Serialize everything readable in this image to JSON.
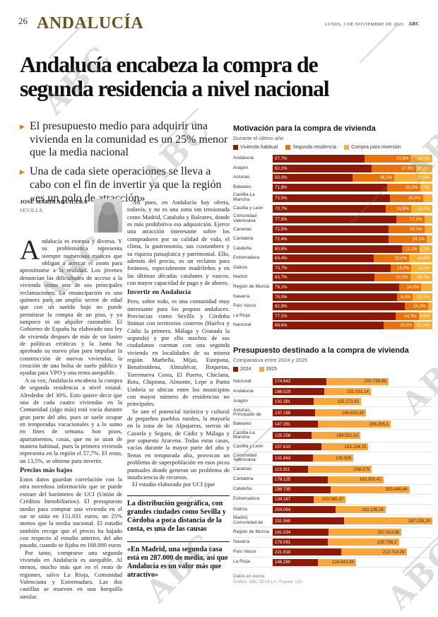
{
  "page": {
    "number": "26",
    "section": "ANDALUCÍA",
    "dateline": "LUNES, 3 DE NOVIEMBRE DE 2025",
    "brand": "ABC",
    "watermark": "ABC",
    "accent_color": "#e87511",
    "section_color": "#6b531f"
  },
  "headline": {
    "full": "Andalucía encabeza la compra de segunda residencia a nivel nacional",
    "line1": "Andalucía encabeza la compra de",
    "line2": "segunda residencia a nivel nacional"
  },
  "bullets": [
    "El presupuesto medio para adquirir una vivienda en la comunidad es un 25% menor que la media nacional",
    "Una de cada siete operaciones se lleva a cabo con el fin de invertir ya que la región «es un polo de atracción»"
  ],
  "byline": {
    "author": "JOSÉ MARÍA AGUILERA",
    "location": "SEVILLA"
  },
  "article": {
    "col1": {
      "p1": "ndalucía es extensa y diversa. Y su problemática representa siempre numerosos matices que obligan a acercar el zoom para aproximarse a la realidad. Los jóvenes denuncian las dificultades de acceso a la vivienda como una de sus principales reclamaciones. La emancipación es una quimera para un amplio sector de edad que con un sueldo bajo no puede permitirse la compra de un piso, y ya tampoco ni un alquiler razonable. El Gobierno de España ha elaborado una ley de vivienda después de más de un lustro de políticas erráticas y la Junta ha aprobado su nuevo plan para impulsar la construcción de nuevas viviendas, la creación de una bolsa de suelo público y ayudas para VPO y una renta asequible.",
      "dropcap": "A",
      "p2": "A su vez, Andalucía encabeza la compra de segunda residencia a nivel estatal. Alrededor del 30%. Esto quiere decir que una de cada cuatro viviendas en la Comunidad (algo más) está vacía durante gran parte del año, pues se suele ocupar en temporadas vacacionales y a lo sumo en fines de semana. Son pisos, apartamentos, casas, que no se usan de manera habitual, pues la primera vivienda representa en la región el 57,7%. El resto, un 13,5%, se obtiene para invertir.",
      "subhead": "Precios más bajos",
      "p3": "Estos datos guardan correlación con la otra novedosa información que se puede extraer del barómetro de UCI (Unión de Créditos Inmobiliarios). El presupuesto medio para comprar una vivienda en el sur se sitúa en 151.031 euros, un 25% menos que la media nacional. El estudio también recoge que el precio ha bajado con respecto al estudio anterior, del año pasado, cuando se fijaba en 168.000 euros",
      "p4": "Por tanto, comprarse una segunda vivienda en Andalucía es asequible. Al menos, mucho más que en el resto de regiones, salvo La Rioja, Comunidad Valenciana y Extremadura. Las dos castillas se mueven en una horquilla similar."
    },
    "col2": {
      "p1": "Así pues, en Andalucía hay oferta, todavía, y no es una zona tan tensionada como Madrid, Cataluña y Baleares, donde es más prohibitiva esa adquisición. Ejerce una atracción interesante sobre los compradores por su calidad de vida, el clima, la gastronomía, sus costumbres y su riqueza paisajística y patrimonial. Ello, además del precio, es un reclamo para foráneos, especialmente madrileños y en las últimas décadas catalanes y vascos, con mayor capacidad de pago y de ahorro.",
      "subhead": "Invertir en Andalucía",
      "p2": "Pero, sobre todo, es una comunidad muy interesante para los propios andaluces. Provincias como Sevilla y Córdoba limitan con territorios costeros (Huelva y Cádiz la primera, Málaga y Granada la segunda) y por ello muchos de sus ciudadanos cuentan con una segunda vivienda en localidades de su misma región. Marbella, Mijas, Estepona, Benalmádena, Almuñécar, Roquetas, Torrenueva Costa, El Puerto, Chiclana, Rota, Chipiona, Almonte, Lepe o Punta Umbría se ubican entre los municipios con mayor número de residencias no principales.",
      "p3": "Se une el potencial turístico y cultural de pequeños pueblos rurales, la mayoría en la zona de las Alpujarras, sierras de Cazorla y Segura, de Cádiz y Málaga y por supuesto Aracena. Todas estas casas, vacías durante la mayor parte del año y llenas en temporada alta, provocan un problema de superpoblación en esos picos puntuales donde generan un problema de insuficiencia de recursos.",
      "p4": "El estudio elaborado por UCI (que"
    },
    "quote1": "La distribución geográfica, con grandes ciudades como Sevilla y Córdoba a poca distancia de la costa,  es una de las causas",
    "quote2": "«En Madrid, una segunda casa está en 287.000 de media, así que Andalucía es un valor más que atractivo»"
  },
  "chart_data": [
    {
      "type": "bar",
      "stacked": true,
      "orientation": "horizontal",
      "title": "Motivación para la compra de vivienda",
      "subtitle": "Durante el último año",
      "unit": "%",
      "legend": [
        "Vivienda habitual",
        "Segunda residencia",
        "Compra para inversión"
      ],
      "colors": [
        "#8c1a06",
        "#e8720c",
        "#f9b032"
      ],
      "xlim": [
        0,
        100
      ],
      "rows": [
        {
          "label": "Andalucía",
          "values": [
            57.7,
            28.8,
            13.5
          ],
          "labels": [
            "57,7%",
            "28,8%",
            "13,5%"
          ]
        },
        {
          "label": "Aragón",
          "values": [
            62.1,
            27.6,
            10.3
          ],
          "labels": [
            "62,1%",
            "27,6%",
            "10,3%"
          ]
        },
        {
          "label": "Asturias",
          "values": [
            50.0,
            26.2,
            23.8
          ],
          "labels": [
            "50,0%",
            "26,2%",
            "23,8%"
          ]
        },
        {
          "label": "Baleares",
          "values": [
            71.8,
            20.5,
            7.7
          ],
          "labels": [
            "71,8%",
            "20,5%",
            "7,7%"
          ]
        },
        {
          "label": "Castilla-La Mancha",
          "values": [
            73.5,
            20.6,
            5.9
          ],
          "labels": [
            "73,5%",
            "20,6%",
            null
          ]
        },
        {
          "label": "Castilla y León",
          "values": [
            70.7,
            15.9,
            13.4
          ],
          "labels": [
            "70,7%",
            "15,9%",
            "13,4%"
          ]
        },
        {
          "label": "Comunidad Valenciana",
          "values": [
            77.5,
            17.5,
            5.0
          ],
          "labels": [
            "77,5%",
            "17,5%",
            null
          ]
        },
        {
          "label": "Canarias",
          "values": [
            72.5,
            22.5,
            5.0
          ],
          "labels": [
            "72,5%",
            "22,5%",
            null
          ]
        },
        {
          "label": "Cantabria",
          "values": [
            72.4,
            24.1,
            3.5
          ],
          "labels": [
            "72,4%",
            "24,1%",
            null
          ]
        },
        {
          "label": "Cataluña",
          "values": [
            80.8,
            11.1,
            8.1
          ],
          "labels": [
            "80,8%",
            "11,1%",
            "8,1%"
          ]
        },
        {
          "label": "Extremadura",
          "values": [
            63.4,
            22.0,
            14.6
          ],
          "labels": [
            "63,4%",
            "22,0%",
            "14,6%"
          ]
        },
        {
          "label": "Galicia",
          "values": [
            73.7,
            13.2,
            13.2
          ],
          "labels": [
            "73,7%",
            "13,2%",
            "13,2%"
          ]
        },
        {
          "label": "Madrid",
          "values": [
            63.7,
            22.5,
            13.7
          ],
          "labels": [
            "63,7%",
            "22,5%",
            "13,7%"
          ]
        },
        {
          "label": "Región de Murcia",
          "values": [
            79.1,
            14.0,
            6.9
          ],
          "labels": [
            "79,1%",
            "14,0%",
            null
          ]
        },
        {
          "label": "Navarra",
          "values": [
            78.0,
            9.8,
            12.2
          ],
          "labels": [
            "78,0%",
            "9,8%",
            "12,2%"
          ]
        },
        {
          "label": "País Vasco",
          "values": [
            82.9,
            14.3,
            2.8
          ],
          "labels": [
            "82,9%",
            "14,3%",
            null
          ]
        },
        {
          "label": "La Rioja",
          "values": [
            77.1,
            14.3,
            8.6
          ],
          "labels": [
            "77,1%",
            "14,3%",
            "8,6%"
          ]
        },
        {
          "label": "Nacional",
          "values": [
            69.6,
            19.0,
            11.4
          ],
          "labels": [
            "69,6%",
            "19,0%",
            "11,4%"
          ]
        }
      ]
    },
    {
      "type": "bar",
      "stacked": true,
      "orientation": "horizontal",
      "title": "Presupuesto destinado a la compra de vivienda",
      "subtitle": "Comparativa entre 2024 y 2025",
      "unit": "euros",
      "legend": [
        "2024",
        "2025"
      ],
      "colors": [
        "#8c1a06",
        "#f9a63c"
      ],
      "footnote": "Datos en euros",
      "credit": "Gráfico: ABC SEVILLA / Fuente: UCI",
      "rows": [
        {
          "label": "Nacional",
          "values": [
            174642,
            200738.09
          ],
          "labels": [
            "174.642",
            "200.738,09"
          ]
        },
        {
          "label": "Andalucía",
          "values": [
            168029,
            151031.14
          ],
          "labels": [
            "168.029",
            "151.031,14"
          ]
        },
        {
          "label": "Aragón",
          "values": [
            132391,
            155172.41
          ],
          "labels": [
            "132.391",
            "155.172,41"
          ]
        },
        {
          "label": "Asturias, Principado de",
          "values": [
            137188,
            165833.33
          ],
          "labels": [
            "137.188",
            "165.833,33"
          ]
        },
        {
          "label": "Baleares",
          "values": [
            147391,
            236205.1
          ],
          "labels": [
            "147.391",
            "236.205,1"
          ]
        },
        {
          "label": "Castilla-La Mancha",
          "values": [
            125256,
            159551.02
          ],
          "labels": [
            "125.256",
            "159.551,02"
          ]
        },
        {
          "label": "Castilla y León",
          "values": [
            157610,
            153134.15
          ],
          "labels": [
            "157.610",
            "153.134,15"
          ]
        },
        {
          "label": "Comunidad Valenciana",
          "values": [
            131663,
            130925
          ],
          "labels": [
            "131.663",
            "130.925"
          ]
        },
        {
          "label": "Canarias",
          "values": [
            113911,
            208375
          ],
          "labels": [
            "113.911",
            "208.375"
          ]
        },
        {
          "label": "Cantabria",
          "values": [
            178125,
            182003.41
          ],
          "labels": [
            "178.125",
            "182.003,41"
          ]
        },
        {
          "label": "Cataluña",
          "values": [
            188735,
            255646.46
          ],
          "labels": [
            "188.735",
            "255.646,46"
          ]
        },
        {
          "label": "Extremadura",
          "values": [
            134167,
            103085.37
          ],
          "labels": [
            "134.167",
            "103.085,37"
          ]
        },
        {
          "label": "Galicia",
          "values": [
            204054,
            163105.26
          ],
          "labels": [
            "204.054",
            "163.105,26"
          ]
        },
        {
          "label": "Madrid, Comunidad de",
          "values": [
            231560,
            287235.29
          ],
          "labels": [
            "231.560",
            "287.235,29"
          ]
        },
        {
          "label": "Región de Murcia",
          "values": [
            181034,
            237813.95
          ],
          "labels": [
            "181.034",
            "237.813,95"
          ]
        },
        {
          "label": "Navarra",
          "values": [
            179091,
            230756.1
          ],
          "labels": [
            "179.091",
            "230.756,1"
          ]
        },
        {
          "label": "País Vasco",
          "values": [
            221618,
            213714.29
          ],
          "labels": [
            "221.618",
            "213.714,29"
          ]
        },
        {
          "label": "La Rioja",
          "values": [
            146280,
            124642.86
          ],
          "labels": [
            "146.280",
            "124.642,86"
          ]
        }
      ]
    }
  ]
}
